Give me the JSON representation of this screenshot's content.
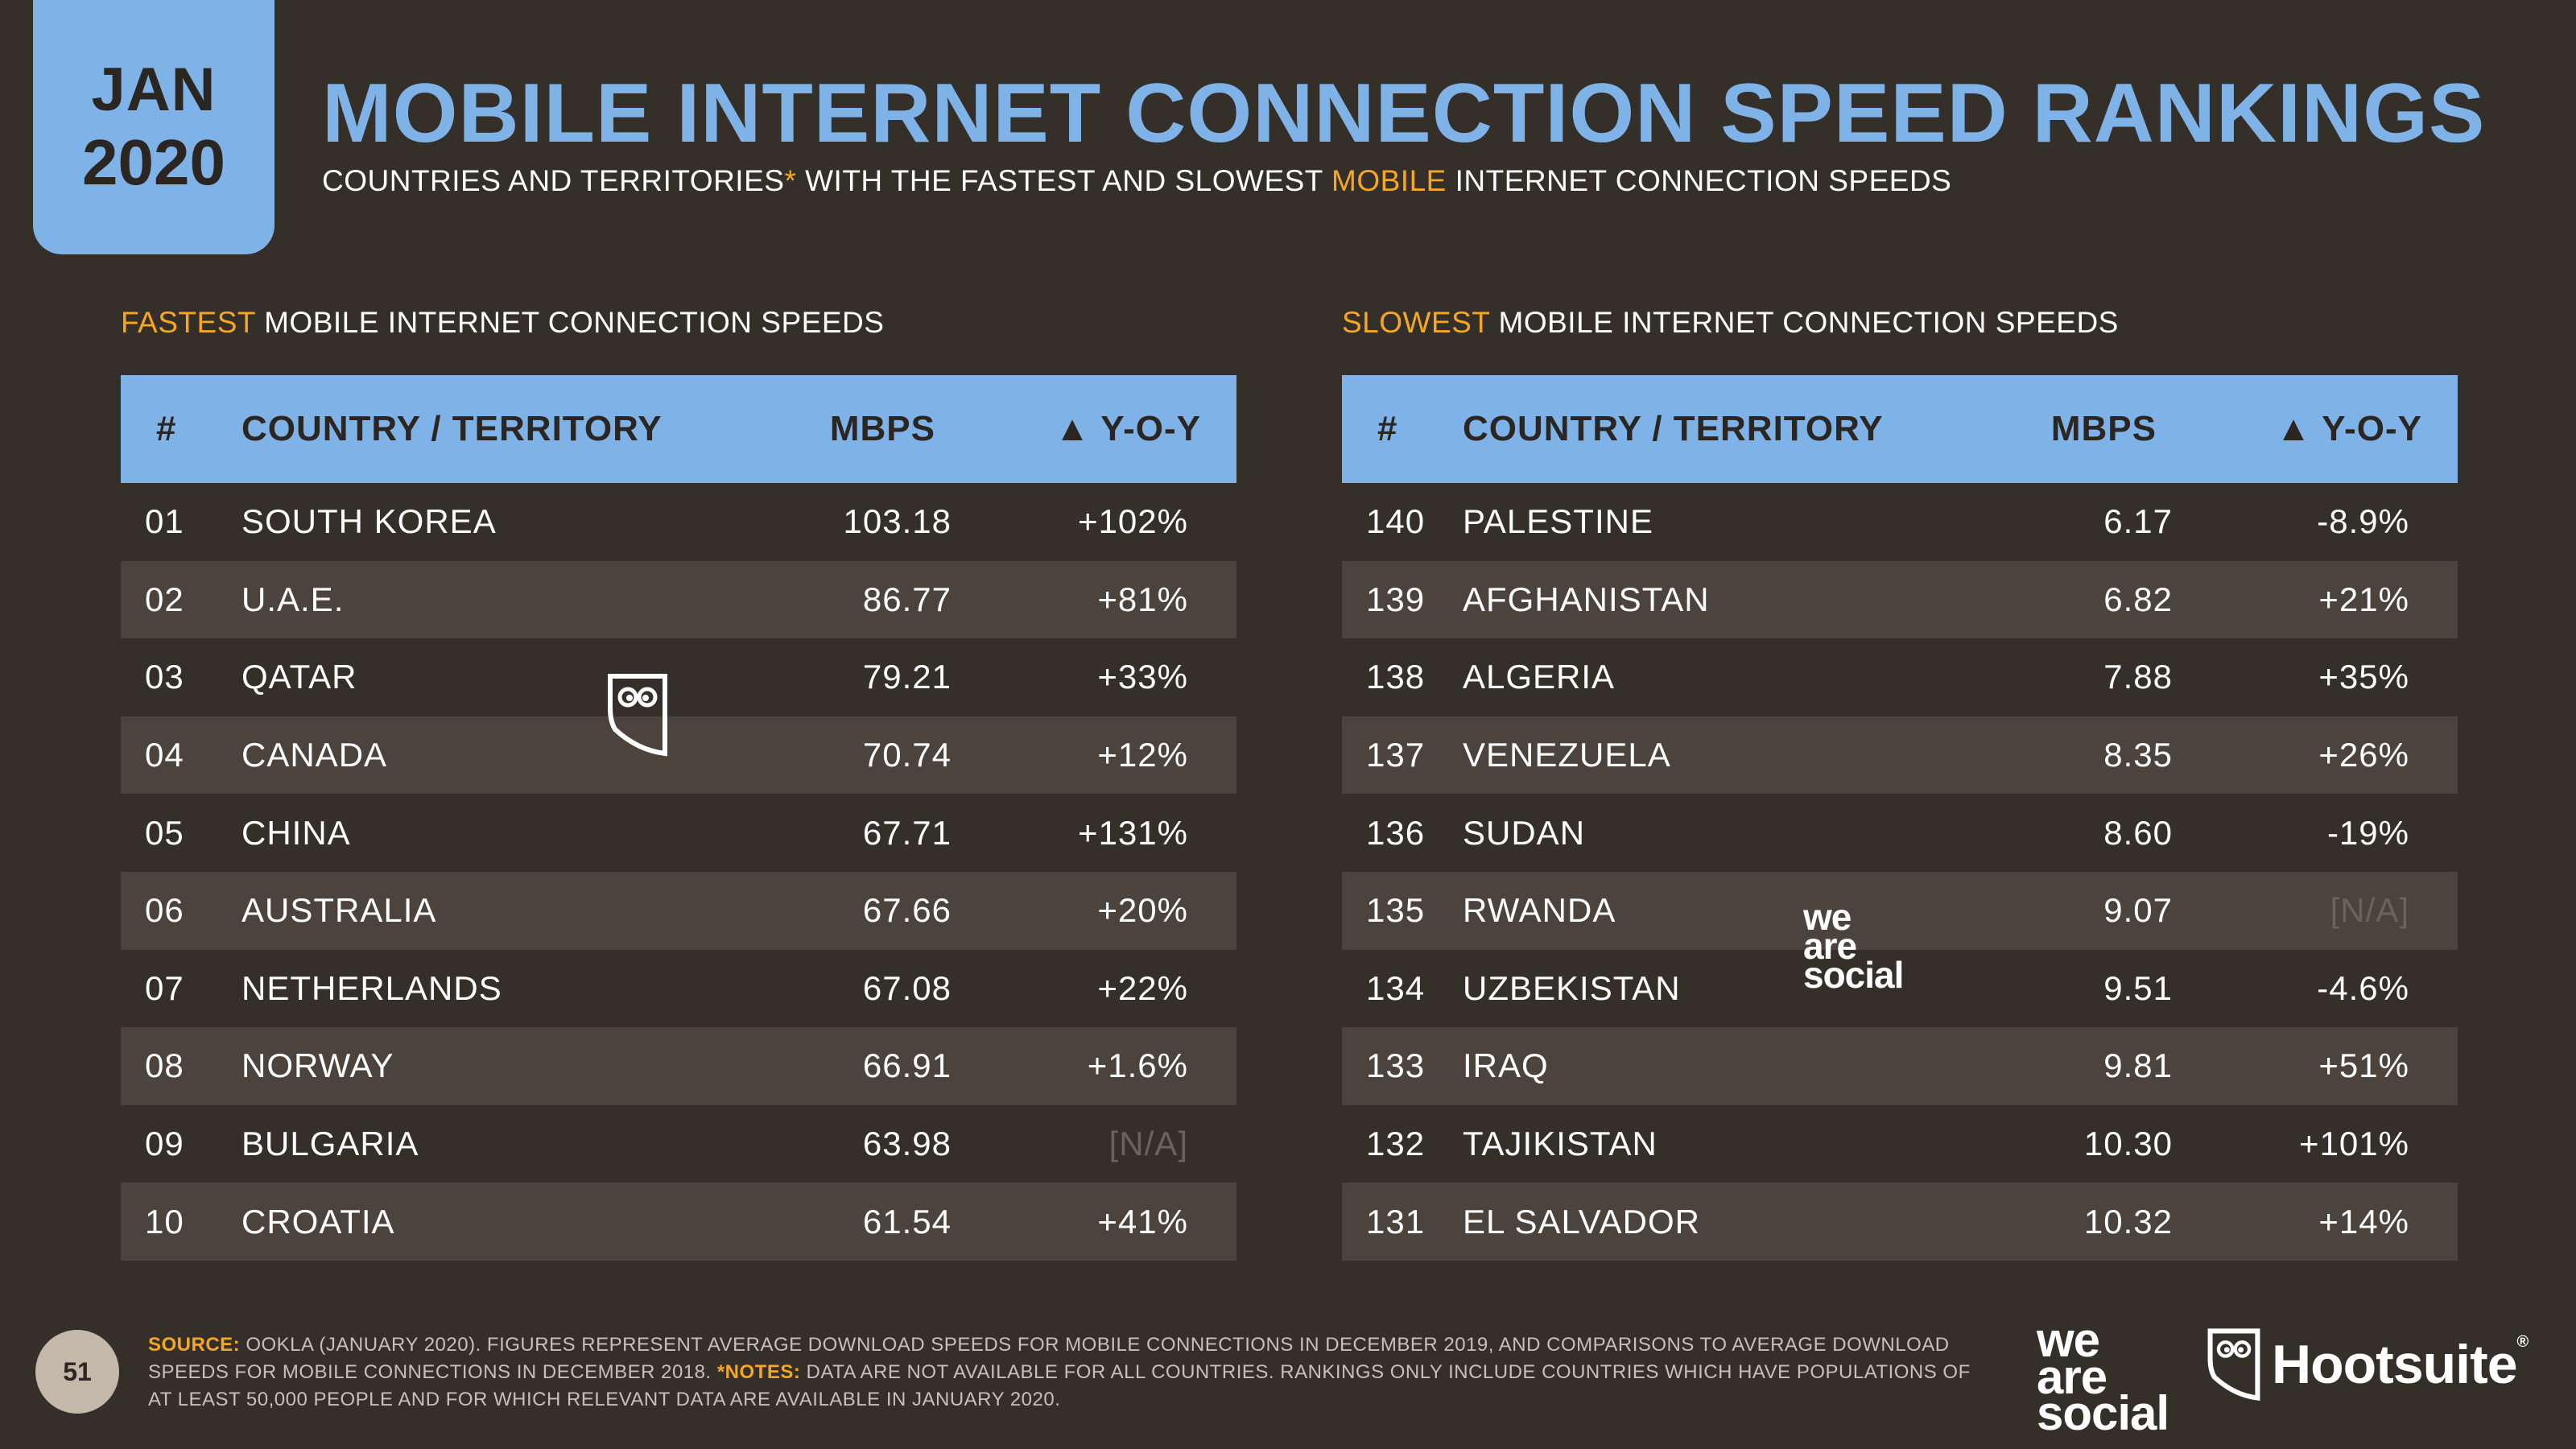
{
  "badge": {
    "month": "JAN",
    "year": "2020"
  },
  "header": {
    "title": "MOBILE INTERNET CONNECTION SPEED RANKINGS",
    "subtitle_a": "COUNTRIES AND TERRITORIES",
    "subtitle_star": "*",
    "subtitle_b": " WITH THE FASTEST AND SLOWEST ",
    "subtitle_highlight": "MOBILE",
    "subtitle_c": " INTERNET CONNECTION SPEEDS"
  },
  "fastest": {
    "title_highlight": "FASTEST",
    "title_rest": " MOBILE INTERNET CONNECTION SPEEDS",
    "columns": {
      "rank": "#",
      "country": "COUNTRY / TERRITORY",
      "mbps": "MBPS",
      "yoy": "▲ Y-O-Y"
    },
    "rows": [
      {
        "rank": "01",
        "country": "SOUTH KOREA",
        "mbps": "103.18",
        "yoy": "+102%"
      },
      {
        "rank": "02",
        "country": "U.A.E.",
        "mbps": "86.77",
        "yoy": "+81%"
      },
      {
        "rank": "03",
        "country": "QATAR",
        "mbps": "79.21",
        "yoy": "+33%"
      },
      {
        "rank": "04",
        "country": "CANADA",
        "mbps": "70.74",
        "yoy": "+12%"
      },
      {
        "rank": "05",
        "country": "CHINA",
        "mbps": "67.71",
        "yoy": "+131%"
      },
      {
        "rank": "06",
        "country": "AUSTRALIA",
        "mbps": "67.66",
        "yoy": "+20%"
      },
      {
        "rank": "07",
        "country": "NETHERLANDS",
        "mbps": "67.08",
        "yoy": "+22%"
      },
      {
        "rank": "08",
        "country": "NORWAY",
        "mbps": "66.91",
        "yoy": "+1.6%"
      },
      {
        "rank": "09",
        "country": "BULGARIA",
        "mbps": "63.98",
        "yoy": "[N/A]"
      },
      {
        "rank": "10",
        "country": "CROATIA",
        "mbps": "61.54",
        "yoy": "+41%"
      }
    ]
  },
  "slowest": {
    "title_highlight": "SLOWEST",
    "title_rest": " MOBILE INTERNET CONNECTION SPEEDS",
    "columns": {
      "rank": "#",
      "country": "COUNTRY / TERRITORY",
      "mbps": "MBPS",
      "yoy": "▲ Y-O-Y"
    },
    "rows": [
      {
        "rank": "140",
        "country": "PALESTINE",
        "mbps": "6.17",
        "yoy": "-8.9%"
      },
      {
        "rank": "139",
        "country": "AFGHANISTAN",
        "mbps": "6.82",
        "yoy": "+21%"
      },
      {
        "rank": "138",
        "country": "ALGERIA",
        "mbps": "7.88",
        "yoy": "+35%"
      },
      {
        "rank": "137",
        "country": "VENEZUELA",
        "mbps": "8.35",
        "yoy": "+26%"
      },
      {
        "rank": "136",
        "country": "SUDAN",
        "mbps": "8.60",
        "yoy": "-19%"
      },
      {
        "rank": "135",
        "country": "RWANDA",
        "mbps": "9.07",
        "yoy": "[N/A]"
      },
      {
        "rank": "134",
        "country": "UZBEKISTAN",
        "mbps": "9.51",
        "yoy": "-4.6%"
      },
      {
        "rank": "133",
        "country": "IRAQ",
        "mbps": "9.81",
        "yoy": "+51%"
      },
      {
        "rank": "132",
        "country": "TAJIKISTAN",
        "mbps": "10.30",
        "yoy": "+101%"
      },
      {
        "rank": "131",
        "country": "EL SALVADOR",
        "mbps": "10.32",
        "yoy": "+14%"
      }
    ]
  },
  "watermark": {
    "was": [
      "we",
      "are",
      "social"
    ]
  },
  "footer": {
    "page": "51",
    "source_label": "SOURCE:",
    "source_text": " OOKLA (JANUARY 2020). FIGURES REPRESENT AVERAGE DOWNLOAD SPEEDS FOR MOBILE CONNECTIONS IN DECEMBER 2019, AND COMPARISONS TO AVERAGE DOWNLOAD SPEEDS FOR MOBILE CONNECTIONS IN DECEMBER 2018. ",
    "notes_label": "*NOTES:",
    "notes_text": " DATA ARE NOT AVAILABLE FOR ALL COUNTRIES. RANKINGS ONLY INCLUDE COUNTRIES WHICH HAVE POPULATIONS OF AT LEAST 50,000 PEOPLE AND FOR WHICH RELEVANT DATA ARE AVAILABLE IN JANUARY 2020.",
    "was": [
      "we",
      "are",
      "social"
    ],
    "hootsuite": "Hootsuite",
    "hootsuite_reg": "®"
  },
  "colors": {
    "accent_blue": "#7fb2e6",
    "accent_orange": "#f5a623",
    "background": "#352f2a",
    "row_alt": "#4c433d"
  }
}
